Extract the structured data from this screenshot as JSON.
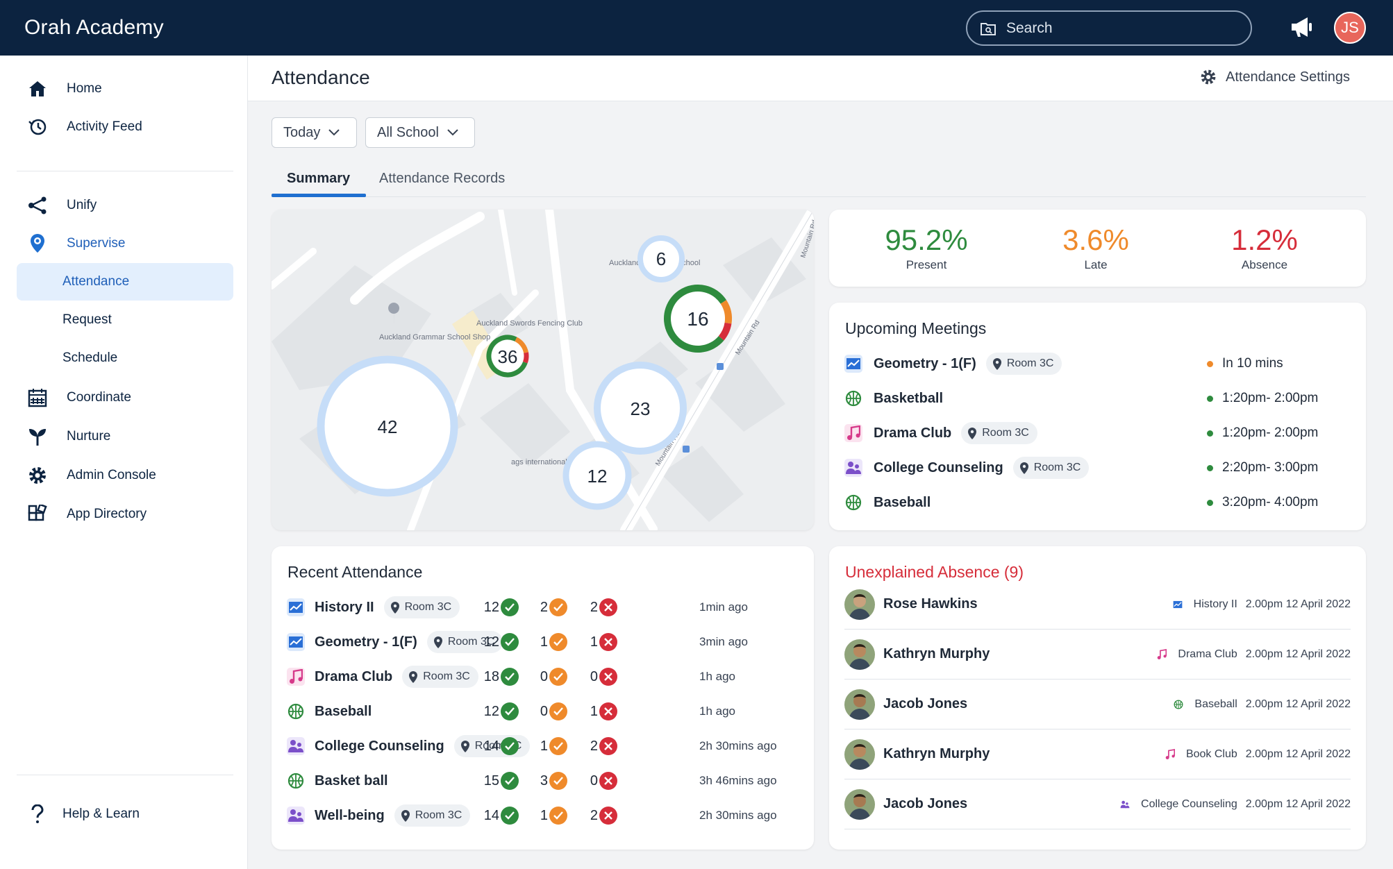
{
  "app": {
    "title": "Orah Academy"
  },
  "search": {
    "placeholder": "Search"
  },
  "user": {
    "initials": "JS"
  },
  "sidebar": {
    "items": [
      {
        "label": "Home"
      },
      {
        "label": "Activity Feed"
      },
      {
        "label": "Unify"
      },
      {
        "label": "Supervise"
      },
      {
        "label": "Attendance"
      },
      {
        "label": "Request"
      },
      {
        "label": "Schedule"
      },
      {
        "label": "Coordinate"
      },
      {
        "label": "Nurture"
      },
      {
        "label": "Admin Console"
      },
      {
        "label": "App Directory"
      },
      {
        "label": "Help & Learn"
      }
    ]
  },
  "header": {
    "title": "Attendance",
    "settings_label": "Attendance Settings"
  },
  "filters": {
    "date": "Today",
    "scope": "All School"
  },
  "tabs": [
    {
      "label": "Summary"
    },
    {
      "label": "Attendance Records"
    }
  ],
  "map": {
    "labels": [
      "Auckland Grammar School",
      "Auckland Grammar School Shop",
      "Auckland Swords Fencing Club",
      "ags international Temp",
      "Mountain Rd",
      "Mountain Rd",
      "Mountain Rd"
    ],
    "clusters": [
      {
        "count": "6"
      },
      {
        "count": "16"
      },
      {
        "count": "36"
      },
      {
        "count": "42"
      },
      {
        "count": "23"
      },
      {
        "count": "12"
      }
    ]
  },
  "stats": {
    "present": {
      "value": "95.2%",
      "label": "Present",
      "color": "#2e8b3e"
    },
    "late": {
      "value": "3.6%",
      "label": "Late",
      "color": "#ef8a2b"
    },
    "absence": {
      "value": "1.2%",
      "label": "Absence",
      "color": "#d62d3a"
    }
  },
  "meetings": {
    "title": "Upcoming Meetings",
    "items": [
      {
        "name": "Geometry - 1(F)",
        "room": "Room 3C",
        "time": "In 10 mins",
        "status": "#ef8a2b",
        "icon": "chart-icon"
      },
      {
        "name": "Basketball",
        "room": "",
        "time": "1:20pm- 2:00pm",
        "status": "#2e8b3e",
        "icon": "ball-icon"
      },
      {
        "name": "Drama Club",
        "room": "Room 3C",
        "time": "1:20pm- 2:00pm",
        "status": "#2e8b3e",
        "icon": "music-icon"
      },
      {
        "name": "College Counseling",
        "room": "Room 3C",
        "time": "2:20pm- 3:00pm",
        "status": "#2e8b3e",
        "icon": "people-icon"
      },
      {
        "name": "Baseball",
        "room": "",
        "time": "3:20pm- 4:00pm",
        "status": "#2e8b3e",
        "icon": "ball-icon"
      }
    ]
  },
  "recent": {
    "title": "Recent Attendance",
    "items": [
      {
        "name": "History II",
        "room": "Room 3C",
        "present": "12",
        "late": "2",
        "absent": "2",
        "ago": "1min ago",
        "icon": "chart-icon"
      },
      {
        "name": "Geometry - 1(F)",
        "room": "Room 3C",
        "present": "12",
        "late": "1",
        "absent": "1",
        "ago": "3min ago",
        "icon": "chart-icon"
      },
      {
        "name": "Drama Club",
        "room": "Room 3C",
        "present": "18",
        "late": "0",
        "absent": "0",
        "ago": "1h ago",
        "icon": "music-icon"
      },
      {
        "name": "Baseball",
        "room": "",
        "present": "12",
        "late": "0",
        "absent": "1",
        "ago": "1h ago",
        "icon": "ball-icon"
      },
      {
        "name": "College Counseling",
        "room": "Room 3C",
        "present": "14",
        "late": "1",
        "absent": "2",
        "ago": "2h 30mins ago",
        "icon": "people-icon"
      },
      {
        "name": "Basket ball",
        "room": "",
        "present": "15",
        "late": "3",
        "absent": "0",
        "ago": "3h 46mins ago",
        "icon": "ball-icon"
      },
      {
        "name": "Well-being",
        "room": "Room 3C",
        "present": "14",
        "late": "1",
        "absent": "2",
        "ago": "2h 30mins ago",
        "icon": "people-icon"
      }
    ]
  },
  "absence": {
    "title": "Unexplained Absence (9)",
    "items": [
      {
        "name": "Rose Hawkins",
        "class": "History II",
        "datetime": "2.00pm 12 April 2022",
        "icon": "chart-icon"
      },
      {
        "name": "Kathryn Murphy",
        "class": "Drama Club",
        "datetime": "2.00pm 12 April 2022",
        "icon": "music-icon"
      },
      {
        "name": "Jacob Jones",
        "class": "Baseball",
        "datetime": "2.00pm 12 April 2022",
        "icon": "ball-icon"
      },
      {
        "name": "Kathryn Murphy",
        "class": "Book Club",
        "datetime": "2.00pm 12 April 2022",
        "icon": "music-icon"
      },
      {
        "name": "Jacob Jones",
        "class": "College Counseling",
        "datetime": "2.00pm 12 April 2022",
        "icon": "people-icon"
      }
    ]
  }
}
